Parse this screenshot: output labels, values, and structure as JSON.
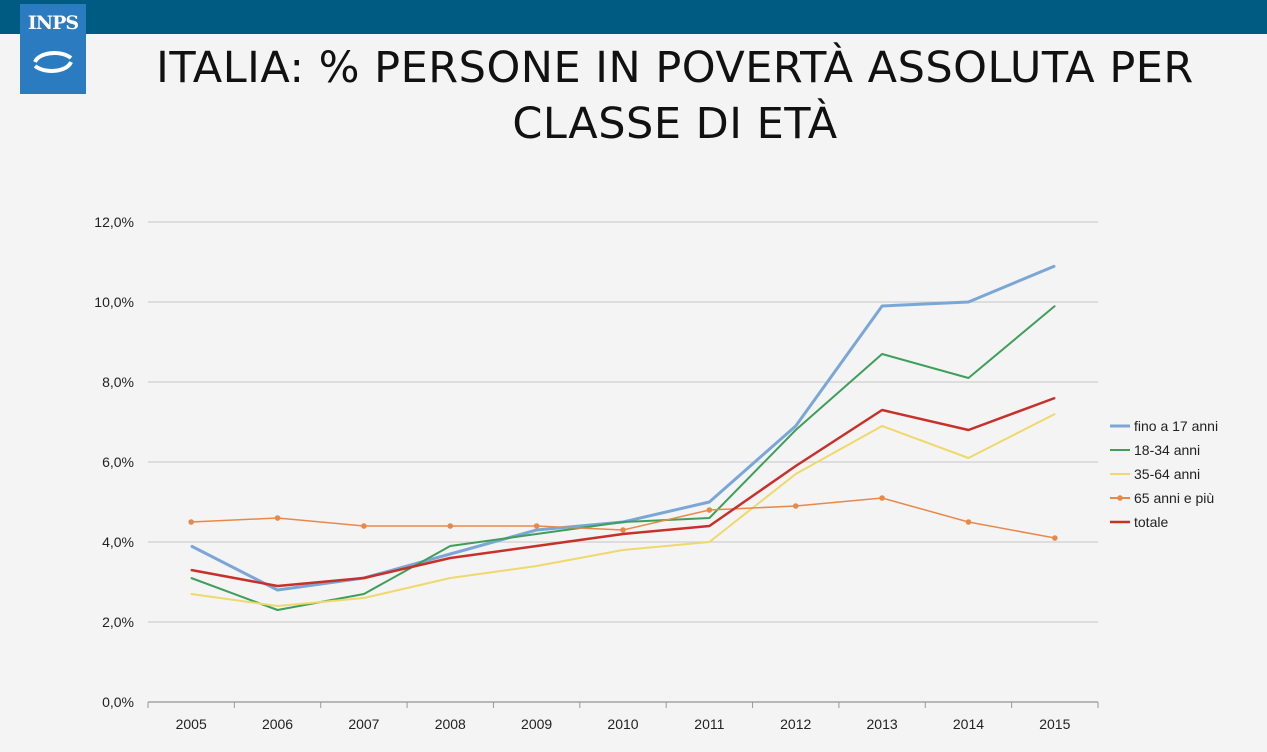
{
  "slide": {
    "title_line1": "ITALIA: % PERSONE IN POVERTÀ ASSOLUTA PER",
    "title_line2": "CLASSE DI ETÀ",
    "logo_text": "INPS"
  },
  "colors": {
    "top_bar": "#005b82",
    "logo_bg": "#2a7bc0"
  },
  "chart_data": {
    "type": "line",
    "title": "",
    "xlabel": "",
    "ylabel": "",
    "x": [
      "2005",
      "2006",
      "2007",
      "2008",
      "2009",
      "2010",
      "2011",
      "2012",
      "2013",
      "2014",
      "2015"
    ],
    "ylim": [
      0,
      12
    ],
    "yticks": [
      0,
      2,
      4,
      6,
      8,
      10,
      12
    ],
    "ytick_labels": [
      "0,0%",
      "2,0%",
      "4,0%",
      "6,0%",
      "8,0%",
      "10,0%",
      "12,0%"
    ],
    "grid": true,
    "legend_position": "right",
    "series": [
      {
        "name": "fino a 17 anni",
        "color": "#7ba7d6",
        "marker": "none",
        "width": 3,
        "values": [
          3.9,
          2.8,
          3.1,
          3.7,
          4.3,
          4.5,
          5.0,
          6.9,
          9.9,
          10.0,
          10.9
        ]
      },
      {
        "name": "18-34 anni",
        "color": "#3f9f5a",
        "marker": "none",
        "width": 2,
        "values": [
          3.1,
          2.3,
          2.7,
          3.9,
          4.2,
          4.5,
          4.6,
          6.8,
          8.7,
          8.1,
          9.9
        ]
      },
      {
        "name": "35-64 anni",
        "color": "#efd96a",
        "marker": "none",
        "width": 2,
        "values": [
          2.7,
          2.4,
          2.6,
          3.1,
          3.4,
          3.8,
          4.0,
          5.7,
          6.9,
          6.1,
          7.2
        ]
      },
      {
        "name": "65 anni e più",
        "color": "#e8894a",
        "marker": "dot",
        "width": 1.5,
        "values": [
          4.5,
          4.6,
          4.4,
          4.4,
          4.4,
          4.3,
          4.8,
          4.9,
          5.1,
          4.5,
          4.1
        ]
      },
      {
        "name": "totale",
        "color": "#c7312a",
        "marker": "none",
        "width": 2.5,
        "values": [
          3.3,
          2.9,
          3.1,
          3.6,
          3.9,
          4.2,
          4.4,
          5.9,
          7.3,
          6.8,
          7.6
        ]
      }
    ]
  }
}
